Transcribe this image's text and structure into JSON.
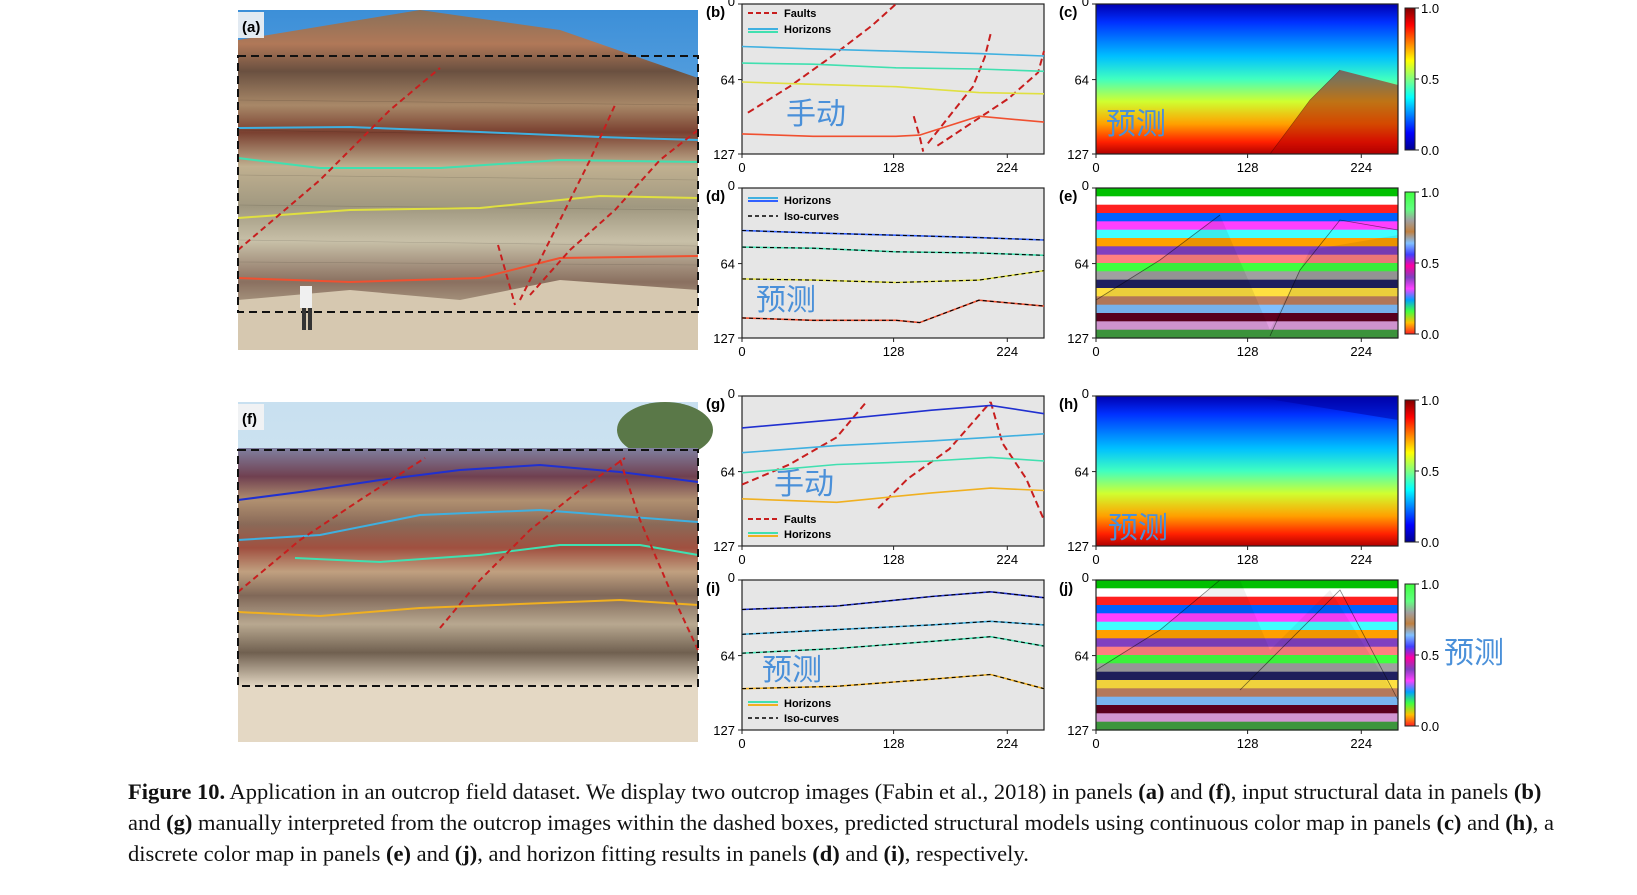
{
  "figure": {
    "number_label": "Figure 10.",
    "caption_parts": [
      {
        "t": " Application in an outcrop field dataset. We display two outcrop images (Fabin et al., 2018) in panels ",
        "b": false
      },
      {
        "t": "(a)",
        "b": true
      },
      {
        "t": " and ",
        "b": false
      },
      {
        "t": "(f)",
        "b": true
      },
      {
        "t": ", input structural data in panels ",
        "b": false
      },
      {
        "t": "(b)",
        "b": true
      },
      {
        "t": " and ",
        "b": false
      },
      {
        "t": "(g)",
        "b": true
      },
      {
        "t": " manually interpreted from the outcrop images within the dashed boxes, predicted structural models using continuous color map in panels ",
        "b": false
      },
      {
        "t": "(c)",
        "b": true
      },
      {
        "t": " and ",
        "b": false
      },
      {
        "t": "(h)",
        "b": true
      },
      {
        "t": ", a discrete color map in panels ",
        "b": false
      },
      {
        "t": "(e)",
        "b": true
      },
      {
        "t": " and ",
        "b": false
      },
      {
        "t": "(j)",
        "b": true
      },
      {
        "t": ", and horizon fitting results in panels ",
        "b": false
      },
      {
        "t": "(d)",
        "b": true
      },
      {
        "t": " and ",
        "b": false
      },
      {
        "t": "(i)",
        "b": true
      },
      {
        "t": ", respectively.",
        "b": false
      }
    ]
  },
  "panels": {
    "a": {
      "label": "(a)"
    },
    "f": {
      "label": "(f)"
    },
    "b": {
      "label": "(b)",
      "annotation": "手动",
      "legend": [
        "Faults",
        "Horizons"
      ]
    },
    "g": {
      "label": "(g)",
      "annotation": "手动",
      "legend": [
        "Faults",
        "Horizons"
      ]
    },
    "d": {
      "label": "(d)",
      "annotation": "预测",
      "legend": [
        "Horizons",
        "Iso-curves"
      ]
    },
    "i": {
      "label": "(i)",
      "annotation": "预测",
      "legend": [
        "Horizons",
        "Iso-curves"
      ]
    },
    "c": {
      "label": "(c)",
      "annotation": "预测"
    },
    "h": {
      "label": "(h)",
      "annotation": "预测"
    },
    "e": {
      "label": "(e)"
    },
    "j": {
      "label": "(j)",
      "side_annotation": "预测"
    }
  },
  "axes": {
    "y_ticks": [
      "0",
      "64",
      "127"
    ],
    "x_ticks": [
      "0",
      "128",
      "224"
    ],
    "colorbar_ticks": [
      "0.0",
      "0.5",
      "1.0"
    ]
  },
  "colors": {
    "fault": "#c81e1e",
    "annotation": "#4a90d9",
    "plot_bg": "#e6e6e6",
    "iso_curve": "#000000"
  },
  "chart_data": [
    {
      "type": "line",
      "panel": "b",
      "xlim": [
        0,
        255
      ],
      "ylim": [
        127,
        0
      ],
      "series": [
        {
          "name": "Faults",
          "kind": "fault",
          "x": [
            5,
            40,
            75,
            110,
            130
          ],
          "y": [
            92,
            70,
            45,
            18,
            0
          ]
        },
        {
          "name": "Faults",
          "kind": "fault",
          "x": [
            145,
            150,
            153
          ],
          "y": [
            95,
            112,
            125
          ]
        },
        {
          "name": "Faults",
          "kind": "fault",
          "x": [
            157,
            175,
            195,
            205,
            210
          ],
          "y": [
            118,
            95,
            70,
            45,
            25
          ]
        },
        {
          "name": "Faults",
          "kind": "fault",
          "x": [
            165,
            195,
            225,
            250,
            255
          ],
          "y": [
            120,
            100,
            80,
            58,
            40
          ]
        },
        {
          "name": "Horizons",
          "kind": "horizon",
          "color": "#3fb0e0",
          "x": [
            0,
            60,
            130,
            200,
            255
          ],
          "y": [
            36,
            38,
            40,
            42,
            44
          ]
        },
        {
          "name": "Horizons",
          "kind": "horizon",
          "color": "#40e0b0",
          "x": [
            0,
            60,
            130,
            200,
            255
          ],
          "y": [
            50,
            51,
            54,
            55,
            57
          ]
        },
        {
          "name": "Horizons",
          "kind": "horizon",
          "color": "#e0e040",
          "x": [
            0,
            60,
            130,
            200,
            255
          ],
          "y": [
            66,
            68,
            70,
            75,
            76
          ]
        },
        {
          "name": "Horizons",
          "kind": "horizon",
          "color": "#f05030",
          "x": [
            0,
            60,
            130,
            150,
            200,
            255
          ],
          "y": [
            110,
            112,
            112,
            111,
            95,
            100
          ]
        }
      ]
    },
    {
      "type": "line",
      "panel": "d",
      "xlim": [
        0,
        255
      ],
      "ylim": [
        127,
        0
      ],
      "series": [
        {
          "name": "Horizons",
          "kind": "horizon",
          "color": "#3060ff",
          "x": [
            0,
            60,
            130,
            200,
            255
          ],
          "y": [
            36,
            38,
            40,
            42,
            44
          ]
        },
        {
          "name": "Horizons",
          "kind": "horizon",
          "color": "#40e0b0",
          "x": [
            0,
            60,
            130,
            200,
            255
          ],
          "y": [
            50,
            51,
            54,
            55,
            57
          ]
        },
        {
          "name": "Horizons",
          "kind": "horizon",
          "color": "#e0e040",
          "x": [
            0,
            60,
            130,
            200,
            255
          ],
          "y": [
            77,
            78,
            80,
            78,
            70
          ]
        },
        {
          "name": "Horizons",
          "kind": "horizon",
          "color": "#f05030",
          "x": [
            0,
            60,
            130,
            150,
            200,
            255
          ],
          "y": [
            110,
            112,
            112,
            114,
            95,
            100
          ]
        }
      ]
    },
    {
      "type": "line",
      "panel": "g",
      "xlim": [
        0,
        255
      ],
      "ylim": [
        127,
        0
      ],
      "series": [
        {
          "name": "Faults",
          "kind": "fault",
          "x": [
            0,
            40,
            80,
            105
          ],
          "y": [
            75,
            58,
            35,
            5
          ]
        },
        {
          "name": "Faults",
          "kind": "fault",
          "x": [
            115,
            140,
            175,
            210
          ],
          "y": [
            95,
            70,
            45,
            5
          ]
        },
        {
          "name": "Faults",
          "kind": "fault",
          "x": [
            210,
            220,
            240,
            255
          ],
          "y": [
            5,
            40,
            70,
            105
          ]
        },
        {
          "name": "Horizons",
          "kind": "horizon",
          "color": "#2030d0",
          "x": [
            0,
            80,
            160,
            210,
            255
          ],
          "y": [
            27,
            20,
            12,
            8,
            15
          ]
        },
        {
          "name": "Horizons",
          "kind": "horizon",
          "color": "#3fb0e0",
          "x": [
            0,
            80,
            160,
            210,
            255
          ],
          "y": [
            48,
            42,
            38,
            35,
            32
          ]
        },
        {
          "name": "Horizons",
          "kind": "horizon",
          "color": "#40e0b0",
          "x": [
            0,
            80,
            160,
            210,
            255
          ],
          "y": [
            65,
            58,
            55,
            52,
            55
          ]
        },
        {
          "name": "Horizons",
          "kind": "horizon",
          "color": "#f0b020",
          "x": [
            0,
            80,
            160,
            210,
            255
          ],
          "y": [
            87,
            90,
            82,
            78,
            80
          ]
        }
      ]
    },
    {
      "type": "line",
      "panel": "i",
      "xlim": [
        0,
        255
      ],
      "ylim": [
        127,
        0
      ],
      "series": [
        {
          "name": "Horizons",
          "kind": "horizon",
          "color": "#2030d0",
          "x": [
            0,
            80,
            160,
            210,
            255
          ],
          "y": [
            25,
            22,
            14,
            10,
            15
          ]
        },
        {
          "name": "Horizons",
          "kind": "horizon",
          "color": "#3fb0e0",
          "x": [
            0,
            80,
            160,
            210,
            255
          ],
          "y": [
            46,
            42,
            38,
            35,
            38
          ]
        },
        {
          "name": "Horizons",
          "kind": "horizon",
          "color": "#40e0b0",
          "x": [
            0,
            80,
            160,
            210,
            255
          ],
          "y": [
            62,
            58,
            52,
            48,
            56
          ]
        },
        {
          "name": "Horizons",
          "kind": "horizon",
          "color": "#f0b020",
          "x": [
            0,
            80,
            160,
            210,
            255
          ],
          "y": [
            92,
            90,
            84,
            80,
            92
          ]
        }
      ]
    }
  ]
}
